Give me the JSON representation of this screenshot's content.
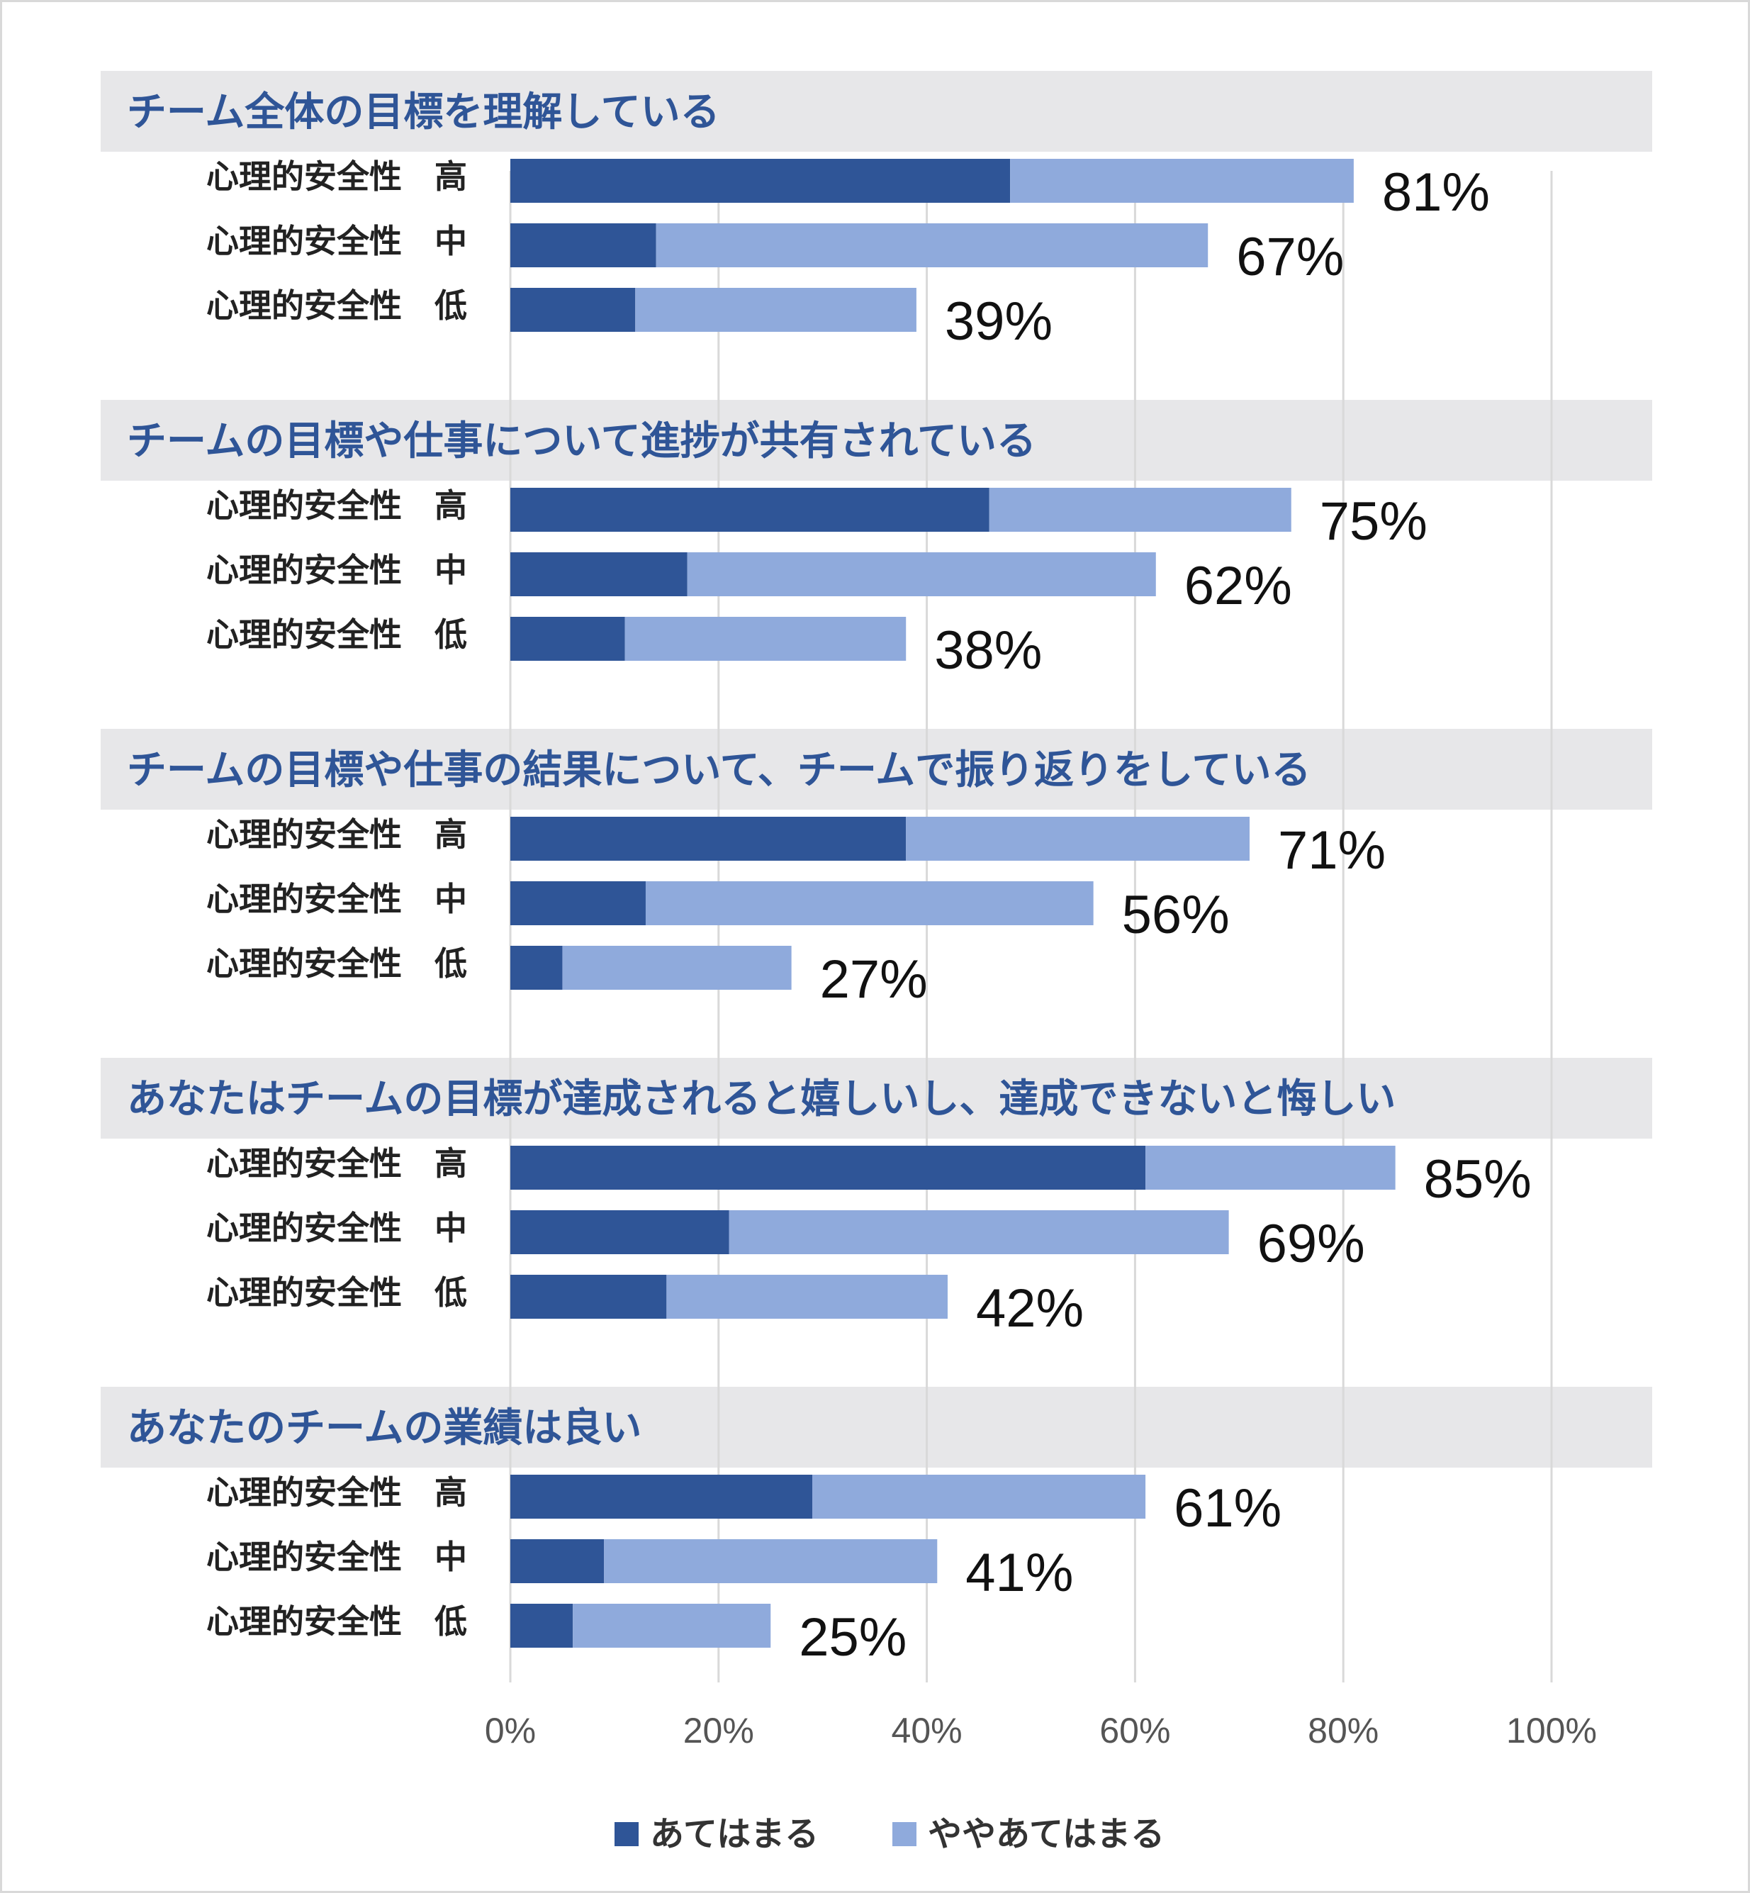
{
  "chart_data": {
    "type": "bar",
    "orientation": "horizontal",
    "stacked": true,
    "colors": {
      "fully_applies": "#2f5597",
      "somewhat_applies": "#8faadc",
      "title": "#2f5597",
      "band": "#e7e7e9"
    },
    "xlim": [
      0,
      100
    ],
    "x_ticks": [
      "0%",
      "20%",
      "40%",
      "60%",
      "80%",
      "100%"
    ],
    "x_tick_values": [
      0,
      20,
      40,
      60,
      80,
      100
    ],
    "legend": {
      "placement": "bottom",
      "items": [
        {
          "name": "あてはまる",
          "color": "#2f5597"
        },
        {
          "name": "ややあてはまる",
          "color": "#8faadc"
        }
      ]
    },
    "groups": [
      {
        "title": "チーム全体の目標を理解している",
        "rows": [
          {
            "label": "心理的安全性　高",
            "fully": 48,
            "somewhat": 33,
            "total_label": "81%"
          },
          {
            "label": "心理的安全性　中",
            "fully": 14,
            "somewhat": 53,
            "total_label": "67%"
          },
          {
            "label": "心理的安全性　低",
            "fully": 12,
            "somewhat": 27,
            "total_label": "39%"
          }
        ]
      },
      {
        "title": "チームの目標や仕事について進捗が共有されている",
        "rows": [
          {
            "label": "心理的安全性　高",
            "fully": 46,
            "somewhat": 29,
            "total_label": "75%"
          },
          {
            "label": "心理的安全性　中",
            "fully": 17,
            "somewhat": 45,
            "total_label": "62%"
          },
          {
            "label": "心理的安全性　低",
            "fully": 11,
            "somewhat": 27,
            "total_label": "38%"
          }
        ]
      },
      {
        "title": "チームの目標や仕事の結果について、チームで振り返りをしている",
        "rows": [
          {
            "label": "心理的安全性　高",
            "fully": 38,
            "somewhat": 33,
            "total_label": "71%"
          },
          {
            "label": "心理的安全性　中",
            "fully": 13,
            "somewhat": 43,
            "total_label": "56%"
          },
          {
            "label": "心理的安全性　低",
            "fully": 5,
            "somewhat": 22,
            "total_label": "27%"
          }
        ]
      },
      {
        "title": "あなたはチームの目標が達成されると嬉しいし、達成できないと悔しい",
        "rows": [
          {
            "label": "心理的安全性　高",
            "fully": 61,
            "somewhat": 24,
            "total_label": "85%"
          },
          {
            "label": "心理的安全性　中",
            "fully": 21,
            "somewhat": 48,
            "total_label": "69%"
          },
          {
            "label": "心理的安全性　低",
            "fully": 15,
            "somewhat": 27,
            "total_label": "42%"
          }
        ]
      },
      {
        "title": "あなたのチームの業績は良い",
        "rows": [
          {
            "label": "心理的安全性　高",
            "fully": 29,
            "somewhat": 32,
            "total_label": "61%"
          },
          {
            "label": "心理的安全性　中",
            "fully": 9,
            "somewhat": 32,
            "total_label": "41%"
          },
          {
            "label": "心理的安全性　低",
            "fully": 6,
            "somewhat": 19,
            "total_label": "25%"
          }
        ]
      }
    ]
  }
}
